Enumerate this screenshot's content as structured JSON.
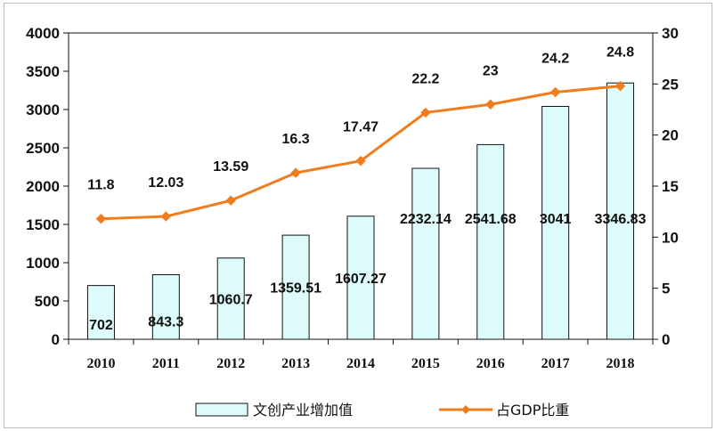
{
  "colors": {
    "bar_fill": "#ddfbfb",
    "bar_stroke": "#111111",
    "line": "#f07c1c",
    "axis": "#111111"
  },
  "chart_data": {
    "type": "bar",
    "categories": [
      "2010",
      "2011",
      "2012",
      "2013",
      "2014",
      "2015",
      "2016",
      "2017",
      "2018"
    ],
    "series": [
      {
        "name": "文创产业增加值",
        "type": "bar",
        "axis": "left",
        "values": [
          702,
          843.3,
          1060.7,
          1359.51,
          1607.27,
          2232.14,
          2541.68,
          3041,
          3346.83
        ],
        "labels": [
          "702",
          "843.3",
          "1060.7",
          "1359.51",
          "1607.27",
          "2232.14",
          "2541.68",
          "3041",
          "3346.83"
        ]
      },
      {
        "name": "占GDP比重",
        "type": "line",
        "axis": "right",
        "values": [
          11.8,
          12.03,
          13.59,
          16.3,
          17.47,
          22.2,
          23,
          24.2,
          24.8
        ],
        "labels": [
          "11.8",
          "12.03",
          "13.59",
          "16.3",
          "17.47",
          "22.2",
          "23",
          "24.2",
          "24.8"
        ]
      }
    ],
    "y_left": {
      "range": [
        0,
        4000
      ],
      "ticks": [
        "0",
        "500",
        "1000",
        "1500",
        "2000",
        "2500",
        "3000",
        "3500",
        "4000"
      ]
    },
    "y_right": {
      "range": [
        0,
        30
      ],
      "ticks": [
        "0",
        "5",
        "10",
        "15",
        "20",
        "25",
        "30"
      ]
    },
    "grid": false,
    "legend_position": "bottom"
  }
}
